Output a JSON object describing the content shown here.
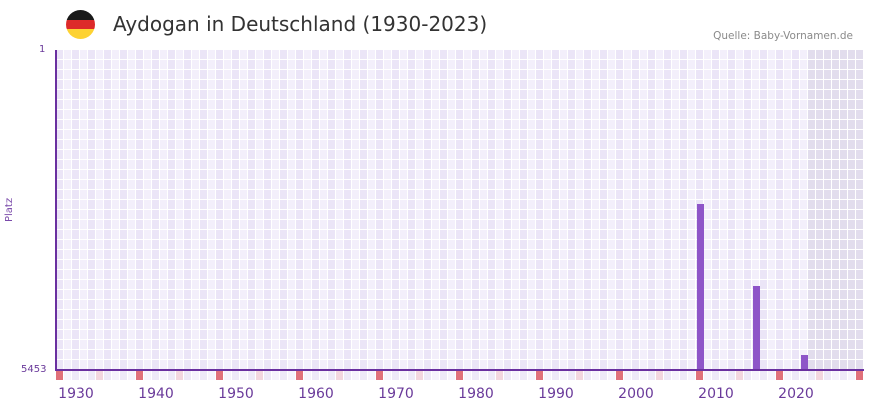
{
  "header": {
    "title": "Aydogan in Deutschland (1930-2023)",
    "source": "Quelle: Baby-Vornamen.de",
    "flag_colors": [
      "#1a1a1a",
      "#dd2a2a",
      "#fdd233"
    ]
  },
  "colors": {
    "bar": "#8e55c8",
    "axis": "#6a30a0",
    "grid_light": "#f3effb",
    "grid_dark": "#ebe5f7",
    "future_shade": "#e2dded",
    "marker_decade": "#e0707a",
    "marker_half": "#f3d6df"
  },
  "chart_data": {
    "type": "bar",
    "title": "Aydogan in Deutschland (1930-2023)",
    "xlabel": "",
    "ylabel": "Platz",
    "y_axis_inverted": true,
    "ylim": [
      5453,
      1
    ],
    "xlim": [
      1928,
      2028
    ],
    "y_ticks": [
      "1",
      "5453"
    ],
    "x_ticks": [
      "1930",
      "1940",
      "1950",
      "1960",
      "1970",
      "1980",
      "1990",
      "2000",
      "2010",
      "2020"
    ],
    "grid": true,
    "shaded_region": [
      2022,
      2028
    ],
    "series": [
      {
        "name": "Platz",
        "points": [
          {
            "year": 2008,
            "rank": 2625
          },
          {
            "year": 2015,
            "rank": 4022
          },
          {
            "year": 2021,
            "rank": 5197
          }
        ]
      }
    ]
  },
  "labels": {
    "y_top": "1",
    "y_bottom": "5453",
    "y_title": "Platz"
  }
}
